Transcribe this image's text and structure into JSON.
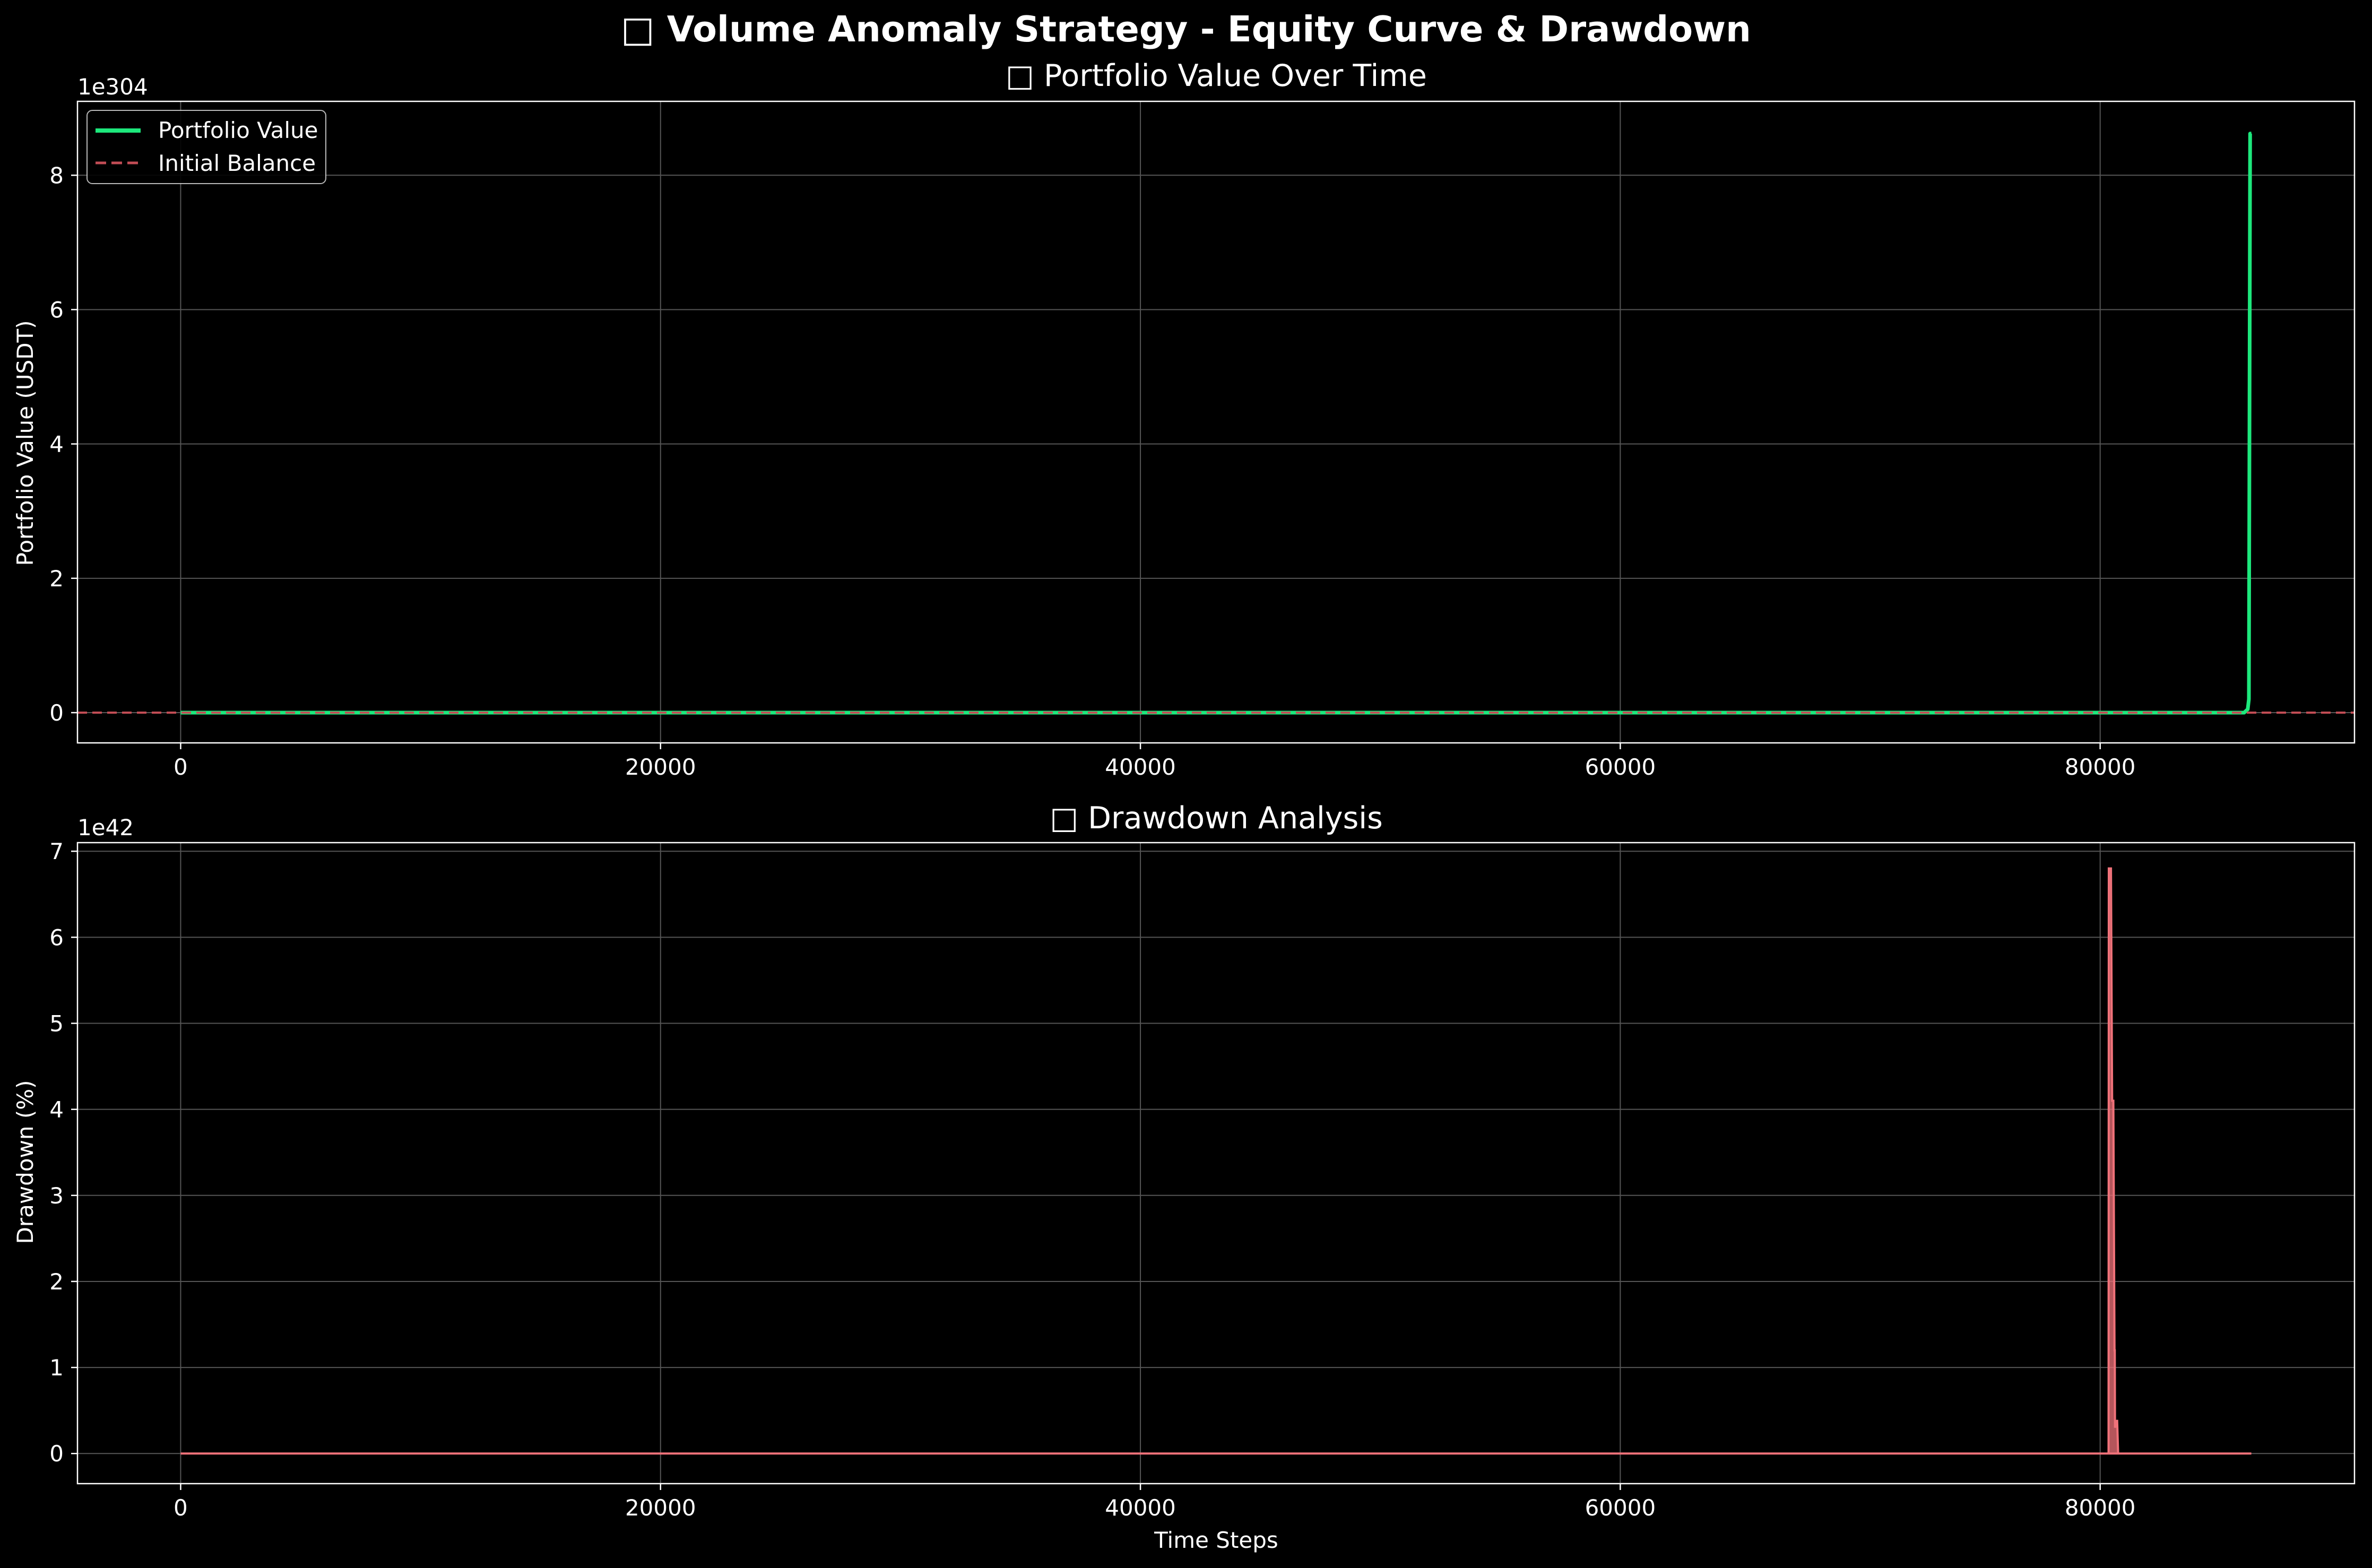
{
  "figure": {
    "title": "□ Volume Anomaly Strategy - Equity Curve & Drawdown",
    "background": "#000000",
    "text_color": "#ffffff",
    "grid_color": "#555555"
  },
  "chart_data": [
    {
      "type": "line",
      "title": "□ Portfolio Value Over Time",
      "xlabel": "",
      "ylabel": "Portfolio Value (USDT)",
      "offset_label": "1e304",
      "xlim": [
        -4300,
        90600
      ],
      "ylim": [
        -0.45,
        9.1
      ],
      "xticks": [
        0,
        20000,
        40000,
        60000,
        80000
      ],
      "xtick_labels": [
        "0",
        "20000",
        "40000",
        "60000",
        "80000"
      ],
      "yticks": [
        0,
        2,
        4,
        6,
        8
      ],
      "ytick_labels": [
        "0",
        "2",
        "4",
        "6",
        "8"
      ],
      "grid": true,
      "legend_position": "top-left",
      "series": [
        {
          "name": "Portfolio Value",
          "color": "#1de87c",
          "style": "solid",
          "x": [
            0,
            86000,
            86150,
            86200,
            86250,
            86300
          ],
          "y": [
            0,
            0,
            0.05,
            0.2,
            8.62,
            8.62
          ]
        },
        {
          "name": "Initial Balance",
          "color": "#c24d55",
          "style": "dashed",
          "x": [
            -4300,
            90600
          ],
          "y": [
            0,
            0
          ]
        }
      ]
    },
    {
      "type": "area",
      "title": "□ Drawdown Analysis",
      "xlabel": "Time Steps",
      "ylabel": "Drawdown (%)",
      "offset_label": "1e42",
      "xlim": [
        -4300,
        90600
      ],
      "ylim": [
        -0.35,
        7.1
      ],
      "xticks": [
        0,
        20000,
        40000,
        60000,
        80000
      ],
      "xtick_labels": [
        "0",
        "20000",
        "40000",
        "60000",
        "80000"
      ],
      "yticks": [
        0,
        1,
        2,
        3,
        4,
        5,
        6,
        7
      ],
      "ytick_labels": [
        "0",
        "1",
        "2",
        "3",
        "4",
        "5",
        "6",
        "7"
      ],
      "grid": true,
      "series": [
        {
          "color": "#f0727a",
          "x": [
            0,
            80350,
            80360,
            80400,
            80450,
            80500,
            80550,
            80600,
            80610,
            80620,
            80700,
            80710,
            80750,
            80760,
            86300
          ],
          "y": [
            0,
            0,
            6.8,
            6.8,
            6.8,
            4.1,
            4.1,
            1.2,
            1.2,
            0.3,
            0.38,
            0.38,
            0,
            0,
            0
          ]
        }
      ]
    }
  ]
}
